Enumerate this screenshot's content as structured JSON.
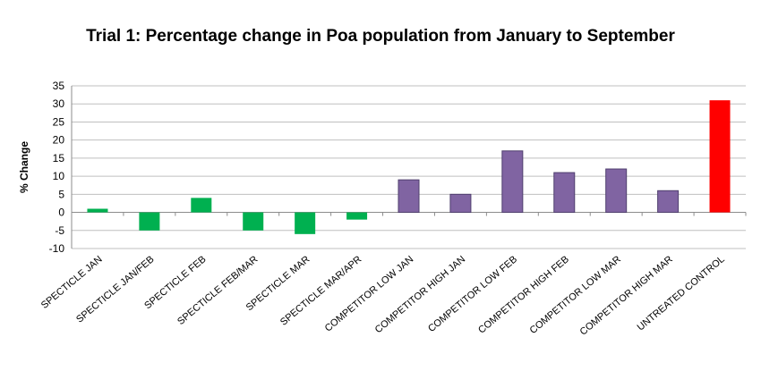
{
  "chart_data": {
    "type": "bar",
    "title": "Trial 1: Percentage change in Poa population from January to September",
    "xlabel": "",
    "ylabel": "% Change",
    "ylim": [
      -10,
      35
    ],
    "yticks": [
      35,
      30,
      25,
      20,
      15,
      10,
      5,
      0,
      -5,
      -10
    ],
    "grid": true,
    "legend": "none",
    "categories": [
      "SPECTICLE JAN",
      "SPECTICLE JAN/FEB",
      "SPECTICLE FEB",
      "SPECTICLE FEB/MAR",
      "SPECTICLE MAR",
      "SPECTICLE MAR/APR",
      "COMPETITOR LOW JAN",
      "COMPETITOR HIGH JAN",
      "COMPETITOR LOW FEB",
      "COMPETITOR HIGH FEB",
      "COMPETITOR LOW MAR",
      "COMPETITOR HIGH MAR",
      "UNTREATED CONTROL"
    ],
    "values": [
      1,
      -5,
      4,
      -5,
      -6,
      -2,
      9,
      5,
      17,
      11,
      12,
      6,
      31
    ],
    "colors": [
      "#00b050",
      "#00b050",
      "#00b050",
      "#00b050",
      "#00b050",
      "#00b050",
      "#8064a2",
      "#8064a2",
      "#8064a2",
      "#8064a2",
      "#8064a2",
      "#8064a2",
      "#ff0000"
    ],
    "bar_outline_color": "#4f3f6e"
  }
}
